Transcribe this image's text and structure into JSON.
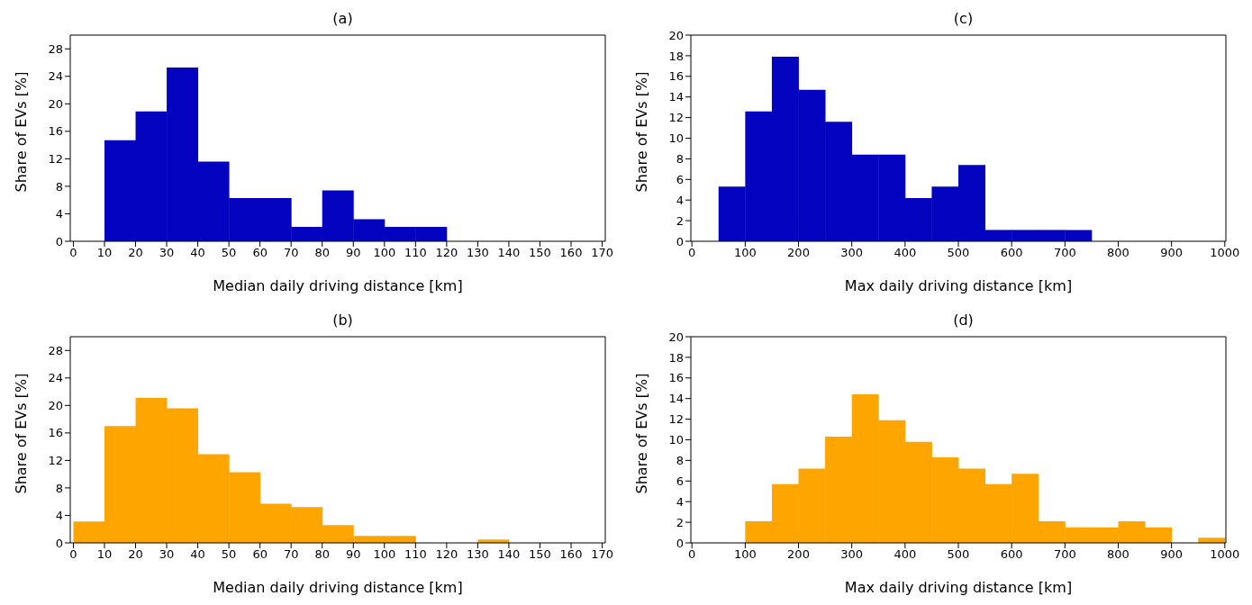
{
  "chart_data": [
    {
      "type": "histogram",
      "title": "(a)",
      "xlabel": "Median daily driving distance [km]",
      "ylabel": "Share of EVs [%]",
      "color": "#0404c0",
      "bins": [
        0,
        10,
        20,
        30,
        40,
        50,
        60,
        70,
        80,
        90,
        100,
        110,
        120,
        130,
        140,
        150,
        160,
        170
      ],
      "values": [
        0,
        14.7,
        18.9,
        25.3,
        11.6,
        6.3,
        6.3,
        2.1,
        7.4,
        3.2,
        2.1,
        2.1,
        0,
        0,
        0,
        0,
        0
      ],
      "xlim": [
        -1,
        171
      ],
      "ylim": [
        0,
        30
      ],
      "xticks": [
        0,
        10,
        20,
        30,
        40,
        50,
        60,
        70,
        80,
        90,
        100,
        110,
        120,
        130,
        140,
        150,
        160,
        170
      ],
      "yticks": [
        0,
        4,
        8,
        12,
        16,
        20,
        24,
        28
      ]
    },
    {
      "type": "histogram",
      "title": "(c)",
      "xlabel": "Max daily driving distance [km]",
      "ylabel": "Share of EVs [%]",
      "color": "#0404c0",
      "bins": [
        0,
        50,
        100,
        150,
        200,
        250,
        300,
        350,
        400,
        450,
        500,
        550,
        600,
        650,
        700,
        750,
        800,
        850,
        900,
        950,
        1000
      ],
      "values": [
        0,
        5.3,
        12.6,
        17.9,
        14.7,
        11.6,
        8.4,
        8.4,
        4.2,
        5.3,
        7.4,
        1.1,
        1.1,
        1.1,
        1.1,
        0,
        0,
        0,
        0,
        0
      ],
      "xlim": [
        -2,
        1002
      ],
      "ylim": [
        0,
        20
      ],
      "xticks": [
        0,
        100,
        200,
        300,
        400,
        500,
        600,
        700,
        800,
        900,
        1000
      ],
      "yticks": [
        0,
        2,
        4,
        6,
        8,
        10,
        12,
        14,
        16,
        18,
        20
      ]
    },
    {
      "type": "histogram",
      "title": "(b)",
      "xlabel": "Median daily driving distance [km]",
      "ylabel": "Share of EVs [%]",
      "color": "#ffa500",
      "bins": [
        0,
        10,
        20,
        30,
        40,
        50,
        60,
        70,
        80,
        90,
        100,
        110,
        120,
        130,
        140,
        150,
        160,
        170
      ],
      "values": [
        3.1,
        17.0,
        21.1,
        19.6,
        12.9,
        10.3,
        5.7,
        5.2,
        2.6,
        1.0,
        1.0,
        0,
        0,
        0.5,
        0,
        0,
        0
      ],
      "xlim": [
        -1,
        171
      ],
      "ylim": [
        0,
        30
      ],
      "xticks": [
        0,
        10,
        20,
        30,
        40,
        50,
        60,
        70,
        80,
        90,
        100,
        110,
        120,
        130,
        140,
        150,
        160,
        170
      ],
      "yticks": [
        0,
        4,
        8,
        12,
        16,
        20,
        24,
        28
      ]
    },
    {
      "type": "histogram",
      "title": "(d)",
      "xlabel": "Max daily driving distance [km]",
      "ylabel": "Share of EVs [%]",
      "color": "#ffa500",
      "bins": [
        0,
        50,
        100,
        150,
        200,
        250,
        300,
        350,
        400,
        450,
        500,
        550,
        600,
        650,
        700,
        750,
        800,
        850,
        900,
        950,
        1000
      ],
      "values": [
        0,
        0,
        2.1,
        5.7,
        7.2,
        10.3,
        14.4,
        11.9,
        9.8,
        8.3,
        7.2,
        5.7,
        6.7,
        2.1,
        1.5,
        1.5,
        2.1,
        1.5,
        0,
        0.5
      ],
      "xlim": [
        -2,
        1002
      ],
      "ylim": [
        0,
        20
      ],
      "xticks": [
        0,
        100,
        200,
        300,
        400,
        500,
        600,
        700,
        800,
        900,
        1000
      ],
      "yticks": [
        0,
        2,
        4,
        6,
        8,
        10,
        12,
        14,
        16,
        18,
        20
      ]
    }
  ]
}
